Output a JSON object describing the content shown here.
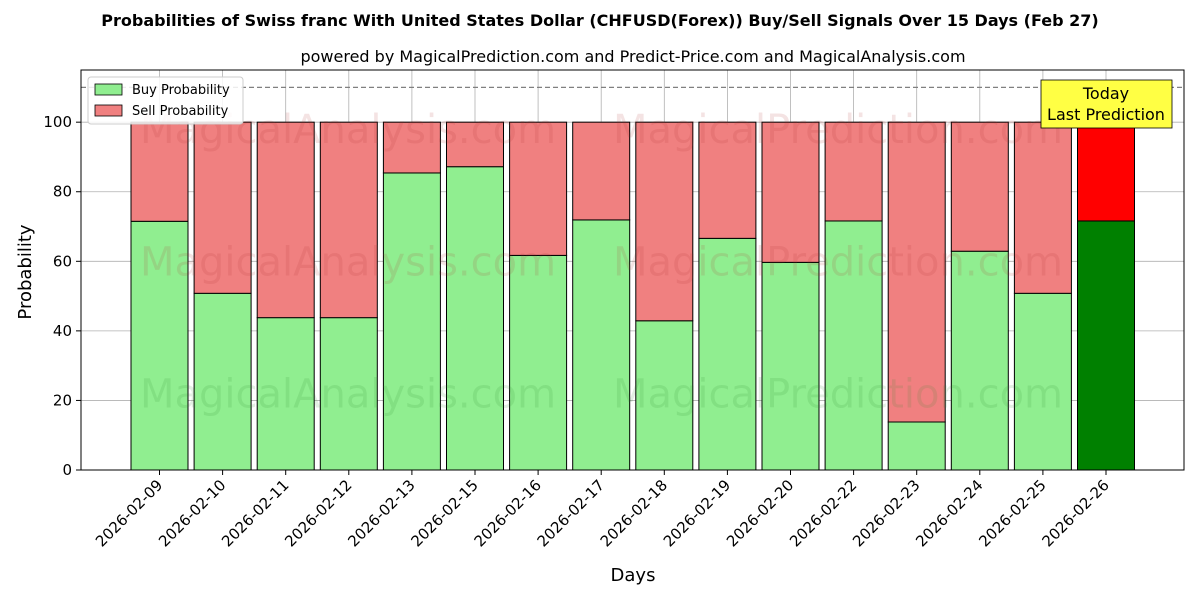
{
  "chart_data": {
    "type": "bar",
    "stacked": true,
    "title": "Probabilities of Swiss franc With United States Dollar (CHFUSD(Forex)) Buy/Sell Signals Over 15 Days (Feb 27)",
    "subtitle": "powered by MagicalPrediction.com and Predict-Price.com and MagicalAnalysis.com",
    "xlabel": "Days",
    "ylabel": "Probability",
    "ylim": [
      0,
      115
    ],
    "yticks": [
      0,
      20,
      40,
      60,
      80,
      100
    ],
    "grid": true,
    "reference_line": 110,
    "categories": [
      "2026-02-09",
      "2026-02-10",
      "2026-02-11",
      "2026-02-12",
      "2026-02-13",
      "2026-02-15",
      "2026-02-16",
      "2026-02-17",
      "2026-02-18",
      "2026-02-19",
      "2026-02-20",
      "2026-02-22",
      "2026-02-23",
      "2026-02-24",
      "2026-02-25",
      "2026-02-26"
    ],
    "series": [
      {
        "name": "Buy Probability",
        "color": "#90ee90",
        "highlight_color": "#008000",
        "values": [
          71.5,
          50.8,
          43.8,
          43.8,
          85.4,
          87.2,
          61.7,
          71.9,
          42.9,
          66.6,
          59.7,
          71.6,
          13.8,
          62.9,
          50.8,
          71.6
        ]
      },
      {
        "name": "Sell Probability",
        "color": "#f08080",
        "highlight_color": "#ff0000",
        "values": [
          28.5,
          49.2,
          56.2,
          56.2,
          14.6,
          12.8,
          38.3,
          28.1,
          57.1,
          33.4,
          40.3,
          28.4,
          86.2,
          37.1,
          49.2,
          28.4
        ]
      }
    ],
    "highlight_index": 15,
    "annotation": {
      "line1": "Today",
      "line2": "Last Prediction",
      "bg": "#ffff44"
    },
    "legend_position": "top-left",
    "watermarks": [
      "MagicalAnalysis.com",
      "MagicalPrediction.com"
    ]
  }
}
